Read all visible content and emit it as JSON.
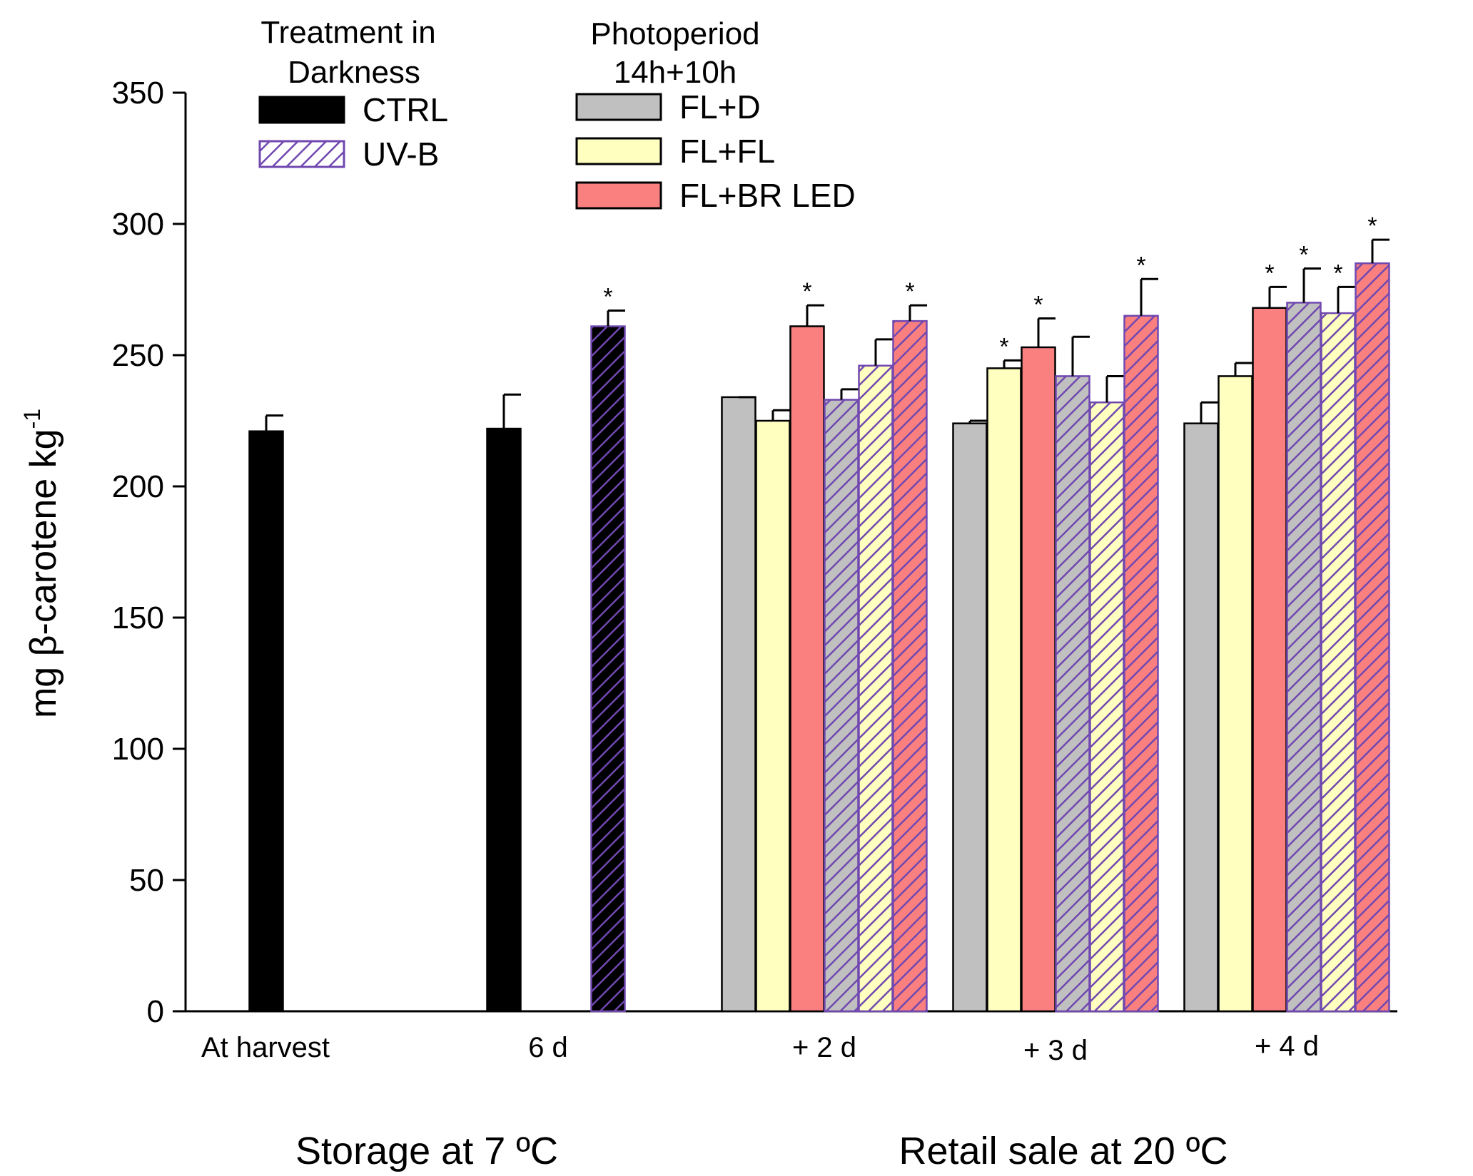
{
  "chart_data": {
    "type": "bar",
    "ylabel": "mg β-carotene kg",
    "ylabel_superscript": "-1",
    "ylim": [
      0,
      350
    ],
    "yticks": [
      0,
      50,
      100,
      150,
      200,
      250,
      300,
      350
    ],
    "groups": [
      {
        "label": "Storage at 7 ºC"
      },
      {
        "label": "Retail sale at 20 ºC"
      }
    ],
    "legend": {
      "darkness_title_line1": "Treatment in",
      "darkness_title_line2": "Darkness",
      "photoperiod_title_line1": "Photoperiod",
      "photoperiod_title_line2": "14h+10h",
      "items": [
        {
          "name": "CTRL",
          "fill": "#000000",
          "edge": "#000000",
          "hatch": false,
          "hatch_color": ""
        },
        {
          "name": "UV-B",
          "fill": "#ffffff",
          "edge": "#7048b0",
          "hatch": true,
          "hatch_color": "#7048b0"
        },
        {
          "name": "FL+D",
          "fill": "#c0c0c0",
          "edge": "#000000",
          "hatch": false,
          "hatch_color": ""
        },
        {
          "name": "FL+FL",
          "fill": "#ffffc0",
          "edge": "#000000",
          "hatch": false,
          "hatch_color": ""
        },
        {
          "name": "FL+BR LED",
          "fill": "#fa8080",
          "edge": "#000000",
          "hatch": false,
          "hatch_color": ""
        }
      ]
    },
    "categories": [
      {
        "label": "At harvest",
        "bars": [
          {
            "name": "CTRL",
            "value": 221,
            "error": 6,
            "sig": false
          }
        ]
      },
      {
        "label": "6 d",
        "bars": [
          {
            "name": "CTRL",
            "value": 222,
            "error": 13,
            "sig": false
          },
          {
            "name": "UV-B",
            "value": 261,
            "error": 6,
            "sig": true
          }
        ]
      },
      {
        "label": "+ 2 d",
        "bars": [
          {
            "name": "FL+D",
            "value": 234,
            "error": 0,
            "sig": false
          },
          {
            "name": "FL+FL",
            "value": 225,
            "error": 4,
            "sig": false
          },
          {
            "name": "FL+BR LED",
            "value": 261,
            "error": 8,
            "sig": true
          },
          {
            "name": "UV-B FL+D",
            "value": 233,
            "error": 4,
            "sig": false
          },
          {
            "name": "UV-B FL+FL",
            "value": 246,
            "error": 10,
            "sig": false
          },
          {
            "name": "UV-B FL+BR LED",
            "value": 263,
            "error": 6,
            "sig": true
          }
        ]
      },
      {
        "label": "+ 3 d",
        "bars": [
          {
            "name": "FL+D",
            "value": 224,
            "error": 1,
            "sig": false
          },
          {
            "name": "FL+FL",
            "value": 245,
            "error": 3,
            "sig": true
          },
          {
            "name": "FL+BR LED",
            "value": 253,
            "error": 11,
            "sig": true
          },
          {
            "name": "UV-B FL+D",
            "value": 242,
            "error": 15,
            "sig": false
          },
          {
            "name": "UV-B FL+FL",
            "value": 232,
            "error": 10,
            "sig": false
          },
          {
            "name": "UV-B FL+BR LED",
            "value": 265,
            "error": 14,
            "sig": true
          }
        ]
      },
      {
        "label": "+ 4 d",
        "bars": [
          {
            "name": "FL+D",
            "value": 224,
            "error": 8,
            "sig": false
          },
          {
            "name": "FL+FL",
            "value": 242,
            "error": 5,
            "sig": false
          },
          {
            "name": "FL+BR LED",
            "value": 268,
            "error": 8,
            "sig": true
          },
          {
            "name": "UV-B FL+D",
            "value": 270,
            "error": 13,
            "sig": true
          },
          {
            "name": "UV-B FL+FL",
            "value": 266,
            "error": 10,
            "sig": true
          },
          {
            "name": "UV-B FL+BR LED",
            "value": 285,
            "error": 9,
            "sig": true
          }
        ]
      }
    ],
    "bar_styles": {
      "CTRL": {
        "fill": "#000000",
        "edge": "#000000",
        "hatch": false,
        "hatch_color": ""
      },
      "UV-B": {
        "fill": "#000000",
        "edge": "#7048b0",
        "hatch": true,
        "hatch_color": "#7048b0"
      },
      "FL+D": {
        "fill": "#c0c0c0",
        "edge": "#000000",
        "hatch": false,
        "hatch_color": ""
      },
      "FL+FL": {
        "fill": "#ffffc0",
        "edge": "#000000",
        "hatch": false,
        "hatch_color": ""
      },
      "FL+BR LED": {
        "fill": "#fa8080",
        "edge": "#000000",
        "hatch": false,
        "hatch_color": ""
      },
      "UV-B FL+D": {
        "fill": "#c0c0c0",
        "edge": "#7048b0",
        "hatch": true,
        "hatch_color": "#7048b0"
      },
      "UV-B FL+FL": {
        "fill": "#ffffc0",
        "edge": "#7048b0",
        "hatch": true,
        "hatch_color": "#7048b0"
      },
      "UV-B FL+BR LED": {
        "fill": "#fa8080",
        "edge": "#7048b0",
        "hatch": true,
        "hatch_color": "#7048b0"
      }
    },
    "significance_marker": "*"
  }
}
